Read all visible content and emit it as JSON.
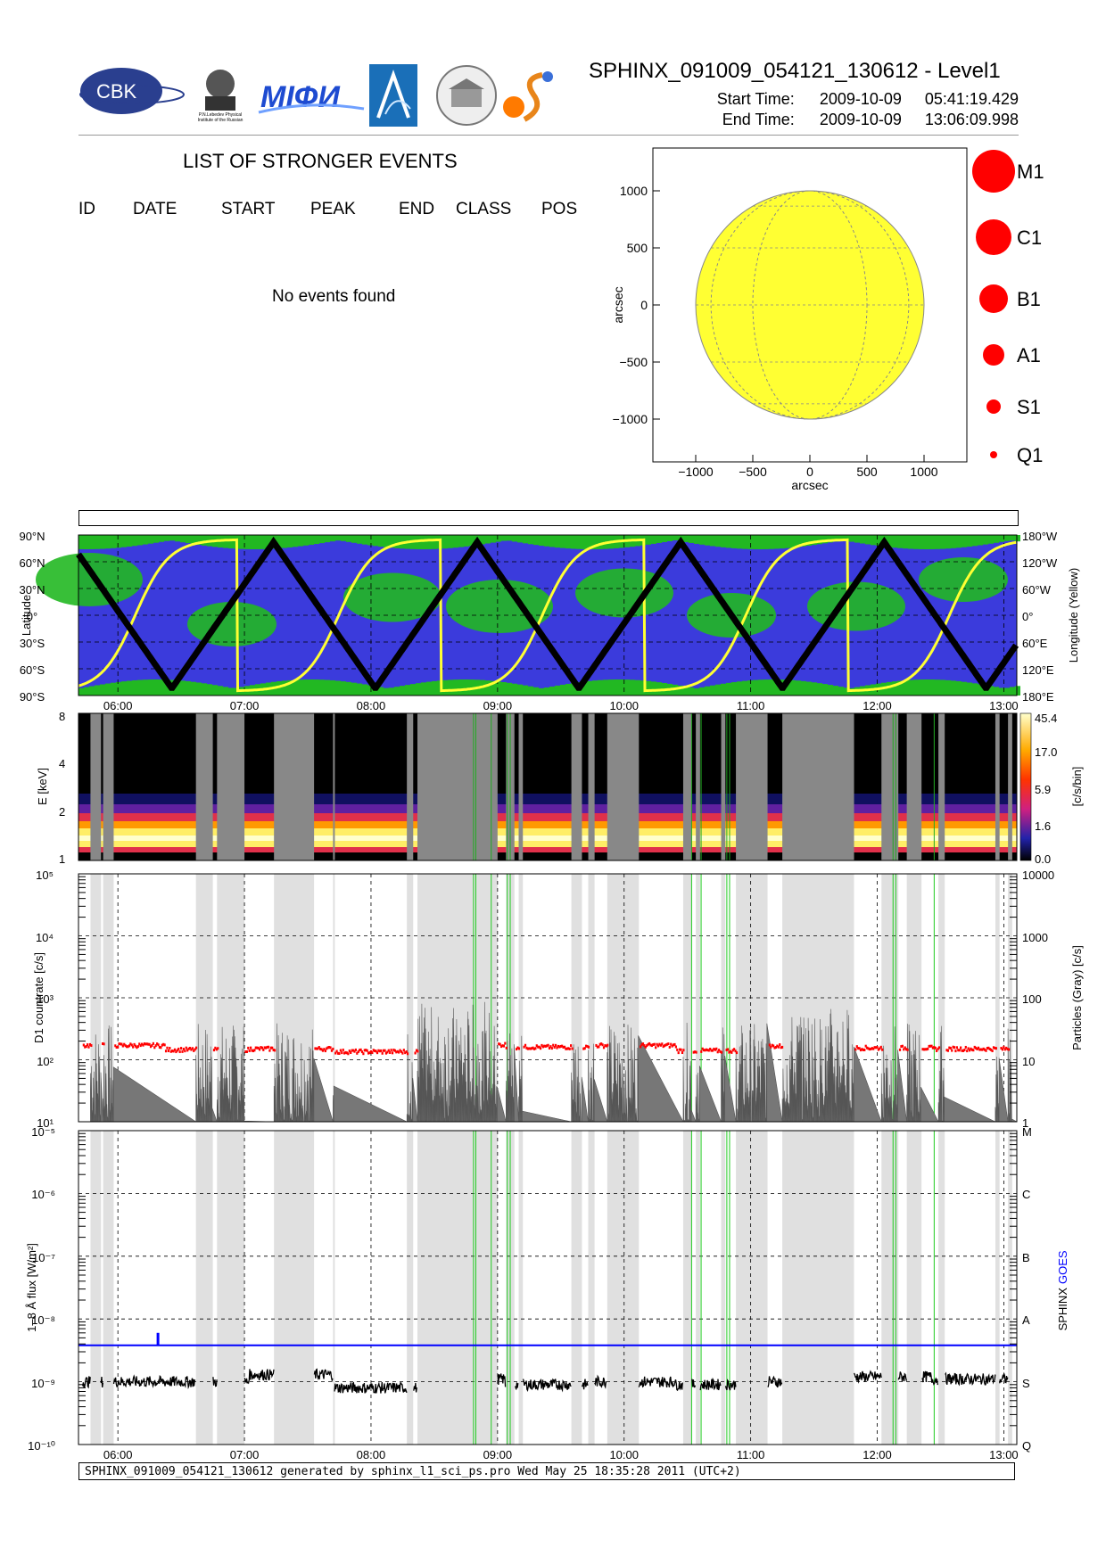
{
  "header": {
    "title": "SPHINX_091009_054121_130612 - Level1",
    "start_label": "Start Time:",
    "start_date": "2009-10-09",
    "start_time": "05:41:19.429",
    "end_label": "End Time:",
    "end_date": "2009-10-09",
    "end_time": "13:06:09.998",
    "logos": [
      "CBK",
      "P.N.Lebedev Physical Institute of the Russian Academy of Science",
      "MIФИ"
    ]
  },
  "events": {
    "title": "LIST OF STRONGER EVENTS",
    "columns": [
      "ID",
      "DATE",
      "START",
      "PEAK",
      "END",
      "CLASS",
      "POS"
    ],
    "message": "No events found"
  },
  "legend": {
    "classes": [
      {
        "label": "M1",
        "color": "#ff0000"
      },
      {
        "label": "C1",
        "color": "#ff0000"
      },
      {
        "label": "B1",
        "color": "#ff0000"
      },
      {
        "label": "A1",
        "color": "#ff0000"
      },
      {
        "label": "S1",
        "color": "#ff0000"
      },
      {
        "label": "Q1",
        "color": "#ff0000"
      }
    ]
  },
  "sun_map": {
    "xlabel": "arcsec",
    "ylabel": "arcsec",
    "xticks": [
      "−1000",
      "−500",
      "0",
      "500",
      "1000"
    ],
    "yticks": [
      "1000",
      "500",
      "0",
      "−500",
      "−1000"
    ],
    "disk_color": "#ffff33",
    "disk_radius_arcsec": 960
  },
  "time_axis": {
    "labels": [
      "06:00",
      "07:00",
      "08:00",
      "09:00",
      "10:00",
      "11:00",
      "12:00",
      "13:00"
    ]
  },
  "orbit_panel": {
    "ylabel_left": "Latitude",
    "ylabel_right": "Longitude (Yellow)",
    "left_ticks": [
      "90°N",
      "60°N",
      "30°N",
      "0°",
      "30°S",
      "60°S",
      "90°S"
    ],
    "right_ticks": [
      "180°W",
      "120°W",
      "60°W",
      "0°",
      "60°E",
      "120°E",
      "180°E"
    ],
    "colors": {
      "background": "#3b3bdc",
      "region": "#22b822",
      "track": "#000000",
      "longitude": "#ffff33"
    }
  },
  "spectrogram": {
    "ylabel": "E [keV]",
    "yticks": [
      "8",
      "4",
      "2",
      "1"
    ],
    "colorbar_label": "[c/s/bin]",
    "colorbar_ticks": [
      "45.4",
      "17.0",
      "5.9",
      "1.6",
      "0.0"
    ]
  },
  "countrate_panel": {
    "ylabel_left": "D1 countrate [c/s]",
    "ylabel_right": "Particles (Gray) [c/s]",
    "left_ticks": [
      "10⁵",
      "10⁴",
      "10³",
      "10²",
      "10¹"
    ],
    "right_ticks": [
      "10000",
      "1000",
      "100",
      "10",
      "1"
    ]
  },
  "flux_panel": {
    "ylabel_left": "1–8 Å flux [W/m²]",
    "ylabel_right_a": "SPHINX",
    "ylabel_right_b": "GOES",
    "left_ticks": [
      "10⁻⁵",
      "10⁻⁶",
      "10⁻⁷",
      "10⁻⁸",
      "10⁻⁹",
      "10⁻¹⁰"
    ],
    "right_ticks": [
      "M",
      "C",
      "B",
      "A",
      "S",
      "Q"
    ],
    "goes_color": "#0000ff"
  },
  "chart_data": [
    {
      "type": "line",
      "title": "D1 countrate",
      "yscale": "log",
      "ylim": [
        10,
        100000
      ],
      "x": [
        "05:47",
        "06:30",
        "07:15",
        "08:00",
        "08:45",
        "09:30",
        "10:15",
        "11:00",
        "11:45",
        "12:30",
        "13:00"
      ],
      "series": [
        {
          "name": "D1 countrate",
          "values": [
            170,
            145,
            150,
            135,
            175,
            160,
            170,
            140,
            165,
            155,
            150
          ]
        }
      ]
    },
    {
      "type": "line",
      "title": "1–8 Å flux",
      "yscale": "log",
      "ylim": [
        1e-10,
        1e-05
      ],
      "x": [
        "05:47",
        "06:30",
        "07:15",
        "08:00",
        "08:45",
        "09:30",
        "10:15",
        "11:00",
        "11:45",
        "12:30",
        "13:00"
      ],
      "series": [
        {
          "name": "SPHINX",
          "values": [
            1e-09,
            1e-09,
            1.3e-09,
            8e-10,
            1.1e-09,
            9e-10,
            1e-09,
            9e-10,
            1e-09,
            1.2e-09,
            1.1e-09
          ]
        },
        {
          "name": "GOES",
          "values": [
            3.8e-09,
            3.8e-09,
            3.8e-09,
            3.8e-09,
            3.8e-09,
            3.8e-09,
            3.8e-09,
            3.8e-09,
            3.8e-09,
            3.8e-09,
            3.8e-09
          ]
        }
      ]
    }
  ],
  "footer": {
    "text": "SPHINX_091009_054121_130612 generated by sphinx_l1_sci_ps.pro Wed May 25 18:35:28 2011 (UTC+2)"
  }
}
